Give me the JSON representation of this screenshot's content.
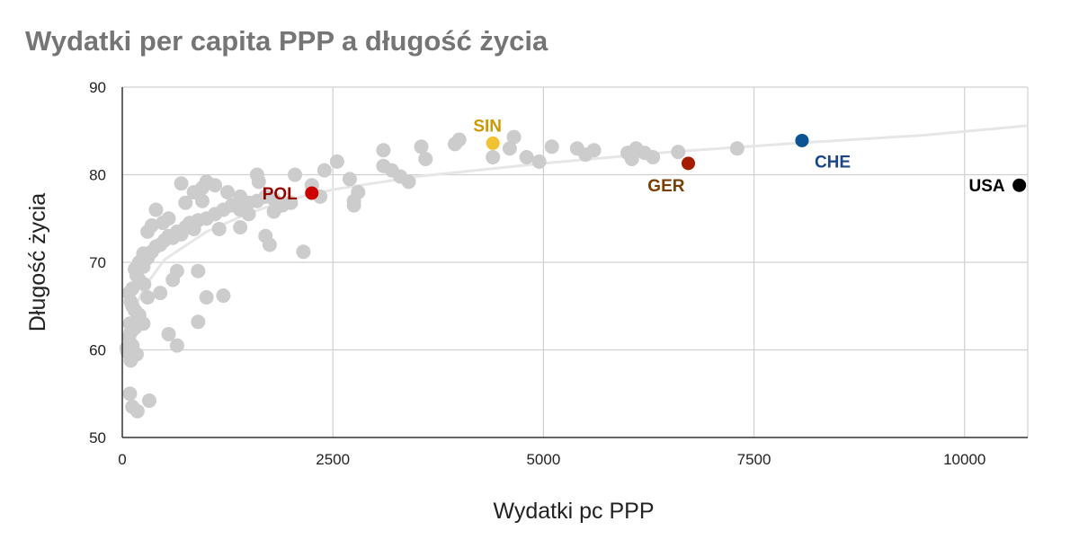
{
  "chart_data": {
    "type": "scatter",
    "title": "Wydatki per capita PPP a długość życia",
    "xlabel": "Wydatki pc PPP",
    "ylabel": "Długość życia",
    "xlim": [
      0,
      10750
    ],
    "ylim": [
      50,
      90
    ],
    "xticks": [
      0,
      2500,
      5000,
      7500,
      10000
    ],
    "yticks": [
      50,
      60,
      70,
      80,
      90
    ],
    "grid": true,
    "trendline": "logarithmic",
    "trend_points": [
      [
        20,
        60.0
      ],
      [
        100,
        63.5
      ],
      [
        250,
        67.0
      ],
      [
        500,
        70.3
      ],
      [
        1000,
        73.5
      ],
      [
        1500,
        75.6
      ],
      [
        2000,
        77.2
      ],
      [
        2500,
        78.3
      ],
      [
        3500,
        79.8
      ],
      [
        5000,
        81.3
      ],
      [
        6500,
        82.6
      ],
      [
        8000,
        83.6
      ],
      [
        9500,
        84.5
      ],
      [
        10750,
        85.6
      ]
    ],
    "point_color": "#cccccc",
    "points": [
      [
        50,
        60.2
      ],
      [
        80,
        61.5
      ],
      [
        100,
        62.0
      ],
      [
        120,
        60.5
      ],
      [
        60,
        59.8
      ],
      [
        90,
        63.0
      ],
      [
        150,
        64.5
      ],
      [
        100,
        65.5
      ],
      [
        80,
        66.5
      ],
      [
        120,
        67.0
      ],
      [
        200,
        68.0
      ],
      [
        170,
        68.5
      ],
      [
        250,
        69.5
      ],
      [
        150,
        69.2
      ],
      [
        200,
        70.0
      ],
      [
        300,
        70.5
      ],
      [
        250,
        71.0
      ],
      [
        350,
        71.2
      ],
      [
        400,
        71.8
      ],
      [
        450,
        72.0
      ],
      [
        500,
        72.5
      ],
      [
        550,
        73.0
      ],
      [
        600,
        72.8
      ],
      [
        650,
        73.5
      ],
      [
        700,
        73.2
      ],
      [
        750,
        74.0
      ],
      [
        800,
        74.5
      ],
      [
        850,
        73.8
      ],
      [
        900,
        74.8
      ],
      [
        1000,
        75.0
      ],
      [
        1100,
        75.5
      ],
      [
        1200,
        76.0
      ],
      [
        1300,
        76.5
      ],
      [
        1400,
        76.0
      ],
      [
        1500,
        76.8
      ],
      [
        1600,
        77.0
      ],
      [
        1700,
        77.5
      ],
      [
        1800,
        77.2
      ],
      [
        1900,
        76.5
      ],
      [
        2000,
        76.8
      ],
      [
        700,
        79.0
      ],
      [
        850,
        78.0
      ],
      [
        950,
        78.5
      ],
      [
        1000,
        79.2
      ],
      [
        1100,
        78.8
      ],
      [
        1250,
        78.0
      ],
      [
        1400,
        77.5
      ],
      [
        1600,
        80.0
      ],
      [
        1620,
        79.2
      ],
      [
        2050,
        80.0
      ],
      [
        2400,
        80.5
      ],
      [
        2550,
        81.5
      ],
      [
        2700,
        79.5
      ],
      [
        2800,
        78.0
      ],
      [
        2750,
        76.5
      ],
      [
        2350,
        77.5
      ],
      [
        2150,
        71.2
      ],
      [
        1700,
        73.0
      ],
      [
        1750,
        72.0
      ],
      [
        1400,
        74.0
      ],
      [
        1200,
        66.2
      ],
      [
        1000,
        66.0
      ],
      [
        900,
        69.0
      ],
      [
        650,
        69.0
      ],
      [
        600,
        68.0
      ],
      [
        450,
        66.5
      ],
      [
        550,
        61.8
      ],
      [
        650,
        60.5
      ],
      [
        900,
        63.2
      ],
      [
        200,
        64.0
      ],
      [
        150,
        62.5
      ],
      [
        180,
        63.5
      ],
      [
        250,
        63.0
      ],
      [
        260,
        67.5
      ],
      [
        300,
        66.0
      ],
      [
        120,
        65.0
      ],
      [
        100,
        58.8
      ],
      [
        120,
        59.2
      ],
      [
        170,
        59.5
      ],
      [
        90,
        55.0
      ],
      [
        120,
        53.5
      ],
      [
        180,
        53.0
      ],
      [
        320,
        54.2
      ],
      [
        3100,
        82.8
      ],
      [
        3100,
        81.0
      ],
      [
        3300,
        79.8
      ],
      [
        3400,
        79.2
      ],
      [
        3550,
        83.2
      ],
      [
        3600,
        81.8
      ],
      [
        3950,
        83.5
      ],
      [
        4000,
        84.0
      ],
      [
        4400,
        82.0
      ],
      [
        4600,
        83.0
      ],
      [
        4650,
        84.3
      ],
      [
        4800,
        82.0
      ],
      [
        4950,
        81.5
      ],
      [
        5100,
        83.2
      ],
      [
        5400,
        83.0
      ],
      [
        5500,
        82.3
      ],
      [
        5600,
        82.8
      ],
      [
        6000,
        82.5
      ],
      [
        6050,
        81.8
      ],
      [
        6100,
        83.0
      ],
      [
        6200,
        82.5
      ],
      [
        6300,
        82.0
      ],
      [
        6600,
        82.6
      ],
      [
        7300,
        83.0
      ],
      [
        400,
        76.0
      ],
      [
        550,
        75.0
      ],
      [
        300,
        73.5
      ],
      [
        350,
        74.2
      ],
      [
        480,
        74.5
      ],
      [
        750,
        76.8
      ],
      [
        950,
        77.0
      ],
      [
        1150,
        73.8
      ],
      [
        1500,
        75.5
      ],
      [
        1800,
        75.8
      ],
      [
        2250,
        78.8
      ],
      [
        2750,
        77.0
      ],
      [
        3200,
        80.5
      ]
    ],
    "highlights": [
      {
        "label": "POL",
        "x": 2250,
        "y": 77.9,
        "point_color": "#cc0000",
        "label_color": "#990000",
        "label_pos": "left"
      },
      {
        "label": "SIN",
        "x": 4400,
        "y": 83.6,
        "point_color": "#f1c232",
        "label_color": "#cc9900",
        "label_pos": "above"
      },
      {
        "label": "GER",
        "x": 6720,
        "y": 81.3,
        "point_color": "#a61c00",
        "label_color": "#783f04",
        "label_pos": "below-left"
      },
      {
        "label": "CHE",
        "x": 8070,
        "y": 83.9,
        "point_color": "#0b5394",
        "label_color": "#1c4587",
        "label_pos": "below-right"
      },
      {
        "label": "USA",
        "x": 10650,
        "y": 78.8,
        "point_color": "#000000",
        "label_color": "#000000",
        "label_pos": "left"
      }
    ]
  }
}
